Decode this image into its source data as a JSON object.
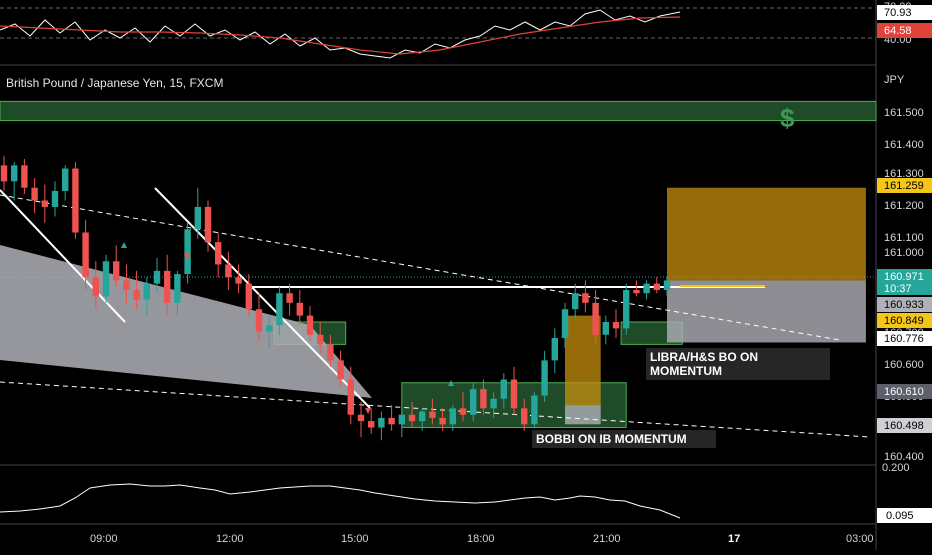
{
  "header": {
    "symbol_title": "British Pound / Japanese Yen, 15, FXCM",
    "currency": "JPY"
  },
  "colors": {
    "background": "#000000",
    "up_candle": "#26a69a",
    "down_candle": "#ef5350",
    "green_zone": "#2e6b3a",
    "orange_zone": "#c8900f",
    "grey_zone": "#b0b0b8",
    "rsi_line": "#ffffff",
    "rsi_ma": "#e0433a"
  },
  "rsi_panel": {
    "tick_70": "70.00",
    "tick_40": "40.00",
    "badge_rsi": "70.93",
    "badge_ma": "64.58"
  },
  "price_axis": {
    "ticks": [
      "161.500",
      "161.400",
      "161.300",
      "161.200",
      "161.100",
      "161.000",
      "160.700",
      "160.600",
      "160.500",
      "160.400"
    ],
    "badges": {
      "target": "161.259",
      "last_price": "160.971",
      "countdown": "10:37",
      "level_1": "160.933",
      "level_2": "160.849",
      "level_3": "160.776",
      "level_4": "160.610",
      "level_5": "160.498"
    }
  },
  "indicator_panel": {
    "tick_top": "0.200",
    "badge_value": "0.095"
  },
  "time_axis": {
    "labels": [
      "09:00",
      "12:00",
      "15:00",
      "18:00",
      "21:00",
      "17",
      "03:00"
    ]
  },
  "annotations": {
    "libra_note": [
      "LIBRA/H&S BO ON",
      "MOMENTUM"
    ],
    "bobbi_note": "BOBBI ON IB MOMENTUM",
    "dollar_icon": "$"
  },
  "chart_data": {
    "type": "candlestick",
    "title": "British Pound / Japanese Yen, 15, FXCM",
    "y_unit": "JPY",
    "ylim": [
      160.38,
      161.6
    ],
    "x_labels": [
      "09:00",
      "12:00",
      "15:00",
      "18:00",
      "21:00",
      "17",
      "03:00"
    ],
    "candles": [
      {
        "o": 161.33,
        "h": 161.36,
        "l": 161.25,
        "c": 161.28
      },
      {
        "o": 161.28,
        "h": 161.34,
        "l": 161.22,
        "c": 161.33
      },
      {
        "o": 161.33,
        "h": 161.35,
        "l": 161.24,
        "c": 161.26
      },
      {
        "o": 161.26,
        "h": 161.29,
        "l": 161.18,
        "c": 161.22
      },
      {
        "o": 161.22,
        "h": 161.27,
        "l": 161.15,
        "c": 161.2
      },
      {
        "o": 161.2,
        "h": 161.28,
        "l": 161.17,
        "c": 161.25
      },
      {
        "o": 161.25,
        "h": 161.33,
        "l": 161.22,
        "c": 161.32
      },
      {
        "o": 161.32,
        "h": 161.34,
        "l": 161.1,
        "c": 161.12
      },
      {
        "o": 161.12,
        "h": 161.16,
        "l": 160.94,
        "c": 160.98
      },
      {
        "o": 160.98,
        "h": 161.03,
        "l": 160.88,
        "c": 160.92
      },
      {
        "o": 160.92,
        "h": 161.05,
        "l": 160.9,
        "c": 161.03
      },
      {
        "o": 161.03,
        "h": 161.08,
        "l": 160.95,
        "c": 160.97
      },
      {
        "o": 160.97,
        "h": 161.02,
        "l": 160.9,
        "c": 160.94
      },
      {
        "o": 160.94,
        "h": 161.0,
        "l": 160.88,
        "c": 160.91
      },
      {
        "o": 160.91,
        "h": 160.98,
        "l": 160.86,
        "c": 160.96
      },
      {
        "o": 160.96,
        "h": 161.04,
        "l": 160.93,
        "c": 161.0
      },
      {
        "o": 161.0,
        "h": 161.05,
        "l": 160.86,
        "c": 160.9
      },
      {
        "o": 160.9,
        "h": 161.0,
        "l": 160.86,
        "c": 160.99
      },
      {
        "o": 160.99,
        "h": 161.15,
        "l": 160.96,
        "c": 161.13
      },
      {
        "o": 161.13,
        "h": 161.26,
        "l": 161.1,
        "c": 161.2
      },
      {
        "o": 161.2,
        "h": 161.22,
        "l": 161.06,
        "c": 161.09
      },
      {
        "o": 161.09,
        "h": 161.12,
        "l": 160.98,
        "c": 161.02
      },
      {
        "o": 161.02,
        "h": 161.06,
        "l": 160.94,
        "c": 160.98
      },
      {
        "o": 160.98,
        "h": 161.02,
        "l": 160.93,
        "c": 160.96
      },
      {
        "o": 160.96,
        "h": 160.99,
        "l": 160.86,
        "c": 160.88
      },
      {
        "o": 160.88,
        "h": 160.93,
        "l": 160.78,
        "c": 160.81
      },
      {
        "o": 160.81,
        "h": 160.86,
        "l": 160.76,
        "c": 160.83
      },
      {
        "o": 160.83,
        "h": 160.95,
        "l": 160.8,
        "c": 160.93
      },
      {
        "o": 160.93,
        "h": 160.96,
        "l": 160.86,
        "c": 160.9
      },
      {
        "o": 160.9,
        "h": 160.94,
        "l": 160.83,
        "c": 160.86
      },
      {
        "o": 160.86,
        "h": 160.89,
        "l": 160.78,
        "c": 160.8
      },
      {
        "o": 160.8,
        "h": 160.84,
        "l": 160.74,
        "c": 160.77
      },
      {
        "o": 160.77,
        "h": 160.8,
        "l": 160.7,
        "c": 160.72
      },
      {
        "o": 160.72,
        "h": 160.75,
        "l": 160.64,
        "c": 160.66
      },
      {
        "o": 160.66,
        "h": 160.7,
        "l": 160.52,
        "c": 160.55
      },
      {
        "o": 160.55,
        "h": 160.59,
        "l": 160.48,
        "c": 160.53
      },
      {
        "o": 160.53,
        "h": 160.57,
        "l": 160.49,
        "c": 160.51
      },
      {
        "o": 160.51,
        "h": 160.56,
        "l": 160.47,
        "c": 160.54
      },
      {
        "o": 160.54,
        "h": 160.58,
        "l": 160.5,
        "c": 160.52
      },
      {
        "o": 160.52,
        "h": 160.57,
        "l": 160.48,
        "c": 160.55
      },
      {
        "o": 160.55,
        "h": 160.59,
        "l": 160.51,
        "c": 160.53
      },
      {
        "o": 160.53,
        "h": 160.57,
        "l": 160.5,
        "c": 160.56
      },
      {
        "o": 160.56,
        "h": 160.6,
        "l": 160.52,
        "c": 160.54
      },
      {
        "o": 160.54,
        "h": 160.57,
        "l": 160.5,
        "c": 160.52
      },
      {
        "o": 160.52,
        "h": 160.58,
        "l": 160.5,
        "c": 160.57
      },
      {
        "o": 160.57,
        "h": 160.62,
        "l": 160.53,
        "c": 160.55
      },
      {
        "o": 160.55,
        "h": 160.65,
        "l": 160.53,
        "c": 160.63
      },
      {
        "o": 160.63,
        "h": 160.66,
        "l": 160.55,
        "c": 160.57
      },
      {
        "o": 160.57,
        "h": 160.62,
        "l": 160.54,
        "c": 160.6
      },
      {
        "o": 160.6,
        "h": 160.68,
        "l": 160.57,
        "c": 160.66
      },
      {
        "o": 160.66,
        "h": 160.7,
        "l": 160.55,
        "c": 160.57
      },
      {
        "o": 160.57,
        "h": 160.6,
        "l": 160.5,
        "c": 160.52
      },
      {
        "o": 160.52,
        "h": 160.62,
        "l": 160.51,
        "c": 160.61
      },
      {
        "o": 160.61,
        "h": 160.75,
        "l": 160.59,
        "c": 160.72
      },
      {
        "o": 160.72,
        "h": 160.82,
        "l": 160.68,
        "c": 160.79
      },
      {
        "o": 160.79,
        "h": 160.9,
        "l": 160.76,
        "c": 160.88
      },
      {
        "o": 160.88,
        "h": 160.96,
        "l": 160.85,
        "c": 160.93
      },
      {
        "o": 160.93,
        "h": 160.97,
        "l": 160.87,
        "c": 160.9
      },
      {
        "o": 160.9,
        "h": 160.94,
        "l": 160.77,
        "c": 160.8
      },
      {
        "o": 160.8,
        "h": 160.86,
        "l": 160.77,
        "c": 160.84
      },
      {
        "o": 160.84,
        "h": 160.88,
        "l": 160.79,
        "c": 160.82
      },
      {
        "o": 160.82,
        "h": 160.96,
        "l": 160.8,
        "c": 160.94
      },
      {
        "o": 160.94,
        "h": 160.97,
        "l": 160.92,
        "c": 160.93
      },
      {
        "o": 160.93,
        "h": 160.97,
        "l": 160.91,
        "c": 160.96
      },
      {
        "o": 160.96,
        "h": 160.98,
        "l": 160.93,
        "c": 160.94
      },
      {
        "o": 160.94,
        "h": 160.98,
        "l": 160.92,
        "c": 160.97
      }
    ],
    "zones": [
      {
        "kind": "green",
        "x0": 0,
        "x1": 80,
        "top": 161.53,
        "bottom": 161.47
      },
      {
        "kind": "green",
        "x0": 26.5,
        "x1": 33.5,
        "top": 160.84,
        "bottom": 160.77
      },
      {
        "kind": "green",
        "x0": 39,
        "x1": 61,
        "top": 160.65,
        "bottom": 160.51
      },
      {
        "kind": "green",
        "x0": 60.5,
        "x1": 66.5,
        "top": 160.84,
        "bottom": 160.77
      },
      {
        "kind": "orange",
        "x0": 55,
        "x1": 58.5,
        "top": 160.86,
        "bottom": 160.58
      },
      {
        "kind": "grey",
        "x0": 55,
        "x1": 58.5,
        "top": 160.58,
        "bottom": 160.52
      },
      {
        "kind": "orange",
        "x0": 65,
        "x1": 84.5,
        "top": 161.26,
        "bottom": 160.97
      },
      {
        "kind": "grey",
        "x0": 65,
        "x1": 84.5,
        "top": 160.97,
        "bottom": 160.776
      }
    ]
  }
}
